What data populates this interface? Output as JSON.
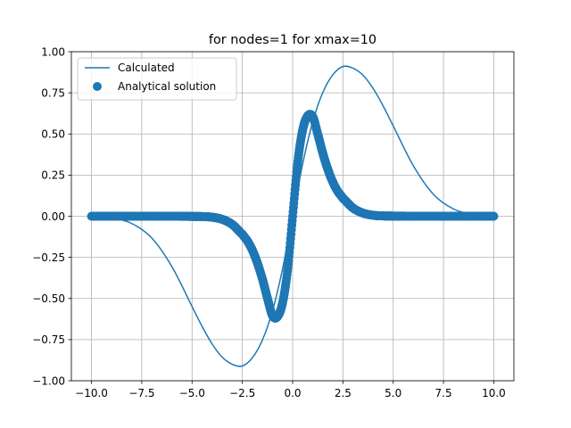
{
  "chart_data": {
    "type": "line",
    "title": "for nodes=1 for xmax=10",
    "xlabel": "",
    "ylabel": "",
    "xlim": [
      -11.0,
      11.0
    ],
    "ylim": [
      -1.0,
      1.0
    ],
    "xticks": [
      -10.0,
      -7.5,
      -5.0,
      -2.5,
      0.0,
      2.5,
      5.0,
      7.5,
      10.0
    ],
    "xtick_labels": [
      "−10.0",
      "−7.5",
      "−5.0",
      "−2.5",
      "0.0",
      "2.5",
      "5.0",
      "7.5",
      "10.0"
    ],
    "yticks": [
      -1.0,
      -0.75,
      -0.5,
      -0.25,
      0.0,
      0.25,
      0.5,
      0.75,
      1.0
    ],
    "ytick_labels": [
      "−1.00",
      "−0.75",
      "−0.50",
      "−0.25",
      "0.00",
      "0.25",
      "0.50",
      "0.75",
      "1.00"
    ],
    "grid": true,
    "legend_position": "top-left",
    "color": "#1f77b4",
    "series": [
      {
        "name": "Calculated",
        "style": "line",
        "x": [
          -10,
          -9,
          -8,
          -7,
          -6,
          -5,
          -4.5,
          -4,
          -3.5,
          -3,
          -2.5,
          -2,
          -1.5,
          -1,
          -0.5,
          0,
          0.5,
          1,
          1.5,
          2,
          2.5,
          3,
          3.5,
          4,
          4.5,
          5,
          6,
          7,
          8,
          9,
          10
        ],
        "y": [
          -0.002,
          -0.011,
          -0.044,
          -0.133,
          -0.307,
          -0.549,
          -0.67,
          -0.777,
          -0.857,
          -0.9,
          -0.91,
          -0.86,
          -0.752,
          -0.575,
          -0.319,
          0,
          0.319,
          0.575,
          0.752,
          0.86,
          0.91,
          0.9,
          0.857,
          0.777,
          0.67,
          0.549,
          0.307,
          0.133,
          0.044,
          0.011,
          0.002
        ]
      },
      {
        "name": "Analytical solution",
        "style": "scatter",
        "x": [
          -10,
          -9,
          -8,
          -7,
          -6,
          -5,
          -4.5,
          -4,
          -3.5,
          -3,
          -2.5,
          -2.25,
          -2,
          -1.75,
          -1.5,
          -1.25,
          -1,
          -0.75,
          -0.5,
          -0.25,
          0,
          0.25,
          0.5,
          0.75,
          1,
          1.25,
          1.5,
          1.75,
          2,
          2.25,
          2.5,
          3,
          3.5,
          4,
          4.5,
          5,
          6,
          7,
          8,
          9,
          10
        ],
        "y": [
          0,
          0,
          0,
          0,
          0,
          -0.001,
          -0.002,
          -0.006,
          -0.019,
          -0.05,
          -0.109,
          -0.15,
          -0.207,
          -0.285,
          -0.383,
          -0.499,
          -0.605,
          -0.61,
          -0.526,
          -0.325,
          0,
          0.325,
          0.526,
          0.61,
          0.605,
          0.499,
          0.383,
          0.285,
          0.207,
          0.15,
          0.109,
          0.05,
          0.019,
          0.006,
          0.002,
          0.001,
          0,
          0,
          0,
          0,
          0
        ]
      }
    ]
  }
}
